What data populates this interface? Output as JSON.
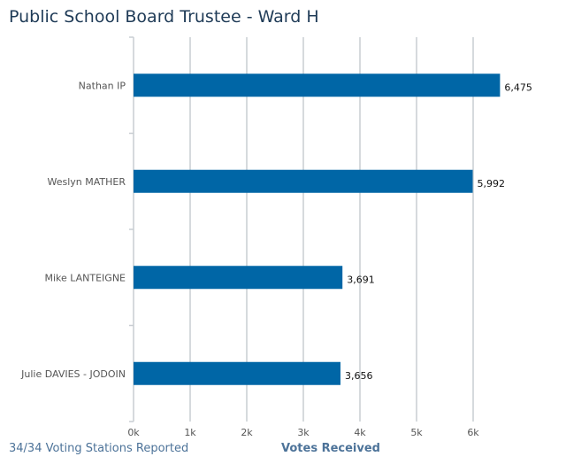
{
  "chart_data": {
    "type": "bar",
    "orientation": "horizontal",
    "title": "Public School Board Trustee - Ward H",
    "categories": [
      "Nathan IP",
      "Weslyn MATHER",
      "Mike LANTEIGNE",
      "Julie DAVIES - JODOIN"
    ],
    "values": [
      6475,
      5992,
      3691,
      3656
    ],
    "value_labels": [
      "6,475",
      "5,992",
      "3,691",
      "3,656"
    ],
    "xlabel": "Votes Received",
    "xlim": [
      0,
      6500
    ],
    "xticks": [
      0,
      1000,
      2000,
      3000,
      4000,
      5000,
      6000
    ],
    "xtick_labels": [
      "0k",
      "1k",
      "2k",
      "3k",
      "4k",
      "5k",
      "6k"
    ],
    "grid": true,
    "bar_color": "#0066a6"
  },
  "footer": {
    "status": "34/34 Voting Stations Reported"
  }
}
